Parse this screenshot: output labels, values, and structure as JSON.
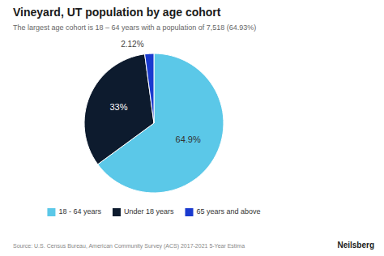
{
  "chart_data": {
    "type": "pie",
    "title": "Vineyard, UT population by age cohort",
    "subtitle": "The largest age cohort is 18 – 64 years with a population of 7,518 (64.93%)",
    "categories": [
      "18 - 64 years",
      "Under 18 years",
      "65 years and above"
    ],
    "values": [
      64.93,
      32.95,
      2.12
    ],
    "value_labels": [
      "64.9%",
      "33%",
      "2.12%"
    ],
    "colors": [
      "#5bc8e8",
      "#0d1b2e",
      "#1a3acf"
    ],
    "data_labels": true,
    "legend": "bottom",
    "annotations": [
      "Source: U.S. Census Bureau, American Community Survey (ACS) 2017-2021 5-Year Estima",
      "Neilsberg"
    ]
  }
}
